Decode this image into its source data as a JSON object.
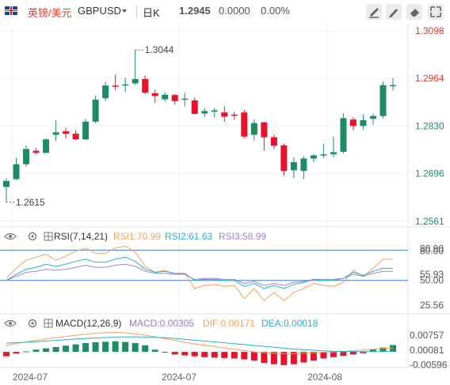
{
  "header": {
    "pair_cn": "英镑/美元",
    "symbol": "GBPUSD",
    "period": "日K",
    "price": "1.2945",
    "change": "0.0000",
    "change_pct": "0.00%"
  },
  "colors": {
    "up": "#1e8c63",
    "down": "#e8132b",
    "rsi1": "#f5a05a",
    "rsi2": "#2ab0c8",
    "rsi3": "#a082d2",
    "dif": "#f5a05a",
    "dea": "#2ab0c8",
    "macd_label": "#9b79cf",
    "ref_line": "#3b7dd8"
  },
  "chart_data": [
    {
      "type": "candlestick",
      "y_ticks": [
        "1.3098",
        "1.2964",
        "1.2830",
        "1.2696",
        "1.2561"
      ],
      "x_ticks": [
        "2024-07",
        "2024-07",
        "2024-08"
      ],
      "annotations": {
        "high": "1.3044",
        "low": "1.2615"
      },
      "ylim": [
        1.2561,
        1.3098
      ],
      "ohlc": [
        [
          1.2658,
          1.2682,
          1.2615,
          1.2675
        ],
        [
          1.268,
          1.274,
          1.2677,
          1.2722
        ],
        [
          1.2722,
          1.2775,
          1.2715,
          1.2765
        ],
        [
          1.276,
          1.2768,
          1.275,
          1.2754
        ],
        [
          1.2754,
          1.2795,
          1.2752,
          1.2792
        ],
        [
          1.2805,
          1.2845,
          1.2788,
          1.2812
        ],
        [
          1.2815,
          1.2825,
          1.2795,
          1.2808
        ],
        [
          1.2808,
          1.2818,
          1.279,
          1.2792
        ],
        [
          1.2792,
          1.285,
          1.279,
          1.2842
        ],
        [
          1.2842,
          1.2915,
          1.2838,
          1.2904
        ],
        [
          1.2908,
          1.2955,
          1.29,
          1.2944
        ],
        [
          1.2944,
          1.2975,
          1.293,
          1.2942
        ],
        [
          1.2945,
          1.2965,
          1.2925,
          1.2947
        ],
        [
          1.295,
          1.3044,
          1.2945,
          1.2962
        ],
        [
          1.2962,
          1.2972,
          1.292,
          1.2924
        ],
        [
          1.2922,
          1.2932,
          1.2895,
          1.2914
        ],
        [
          1.2905,
          1.2925,
          1.2898,
          1.2918
        ],
        [
          1.2917,
          1.292,
          1.289,
          1.29
        ],
        [
          1.2905,
          1.2923,
          1.2885,
          1.2907
        ],
        [
          1.2902,
          1.291,
          1.2862,
          1.2864
        ],
        [
          1.2865,
          1.288,
          1.2855,
          1.2872
        ],
        [
          1.287,
          1.288,
          1.2854,
          1.2874
        ],
        [
          1.2868,
          1.2885,
          1.2842,
          1.2856
        ],
        [
          1.2862,
          1.287,
          1.2848,
          1.286
        ],
        [
          1.2868,
          1.2875,
          1.2795,
          1.28
        ],
        [
          1.2805,
          1.2848,
          1.2788,
          1.2838
        ],
        [
          1.284,
          1.2842,
          1.276,
          1.2798
        ],
        [
          1.2798,
          1.2805,
          1.2765,
          1.2774
        ],
        [
          1.2775,
          1.278,
          1.269,
          1.2703
        ],
        [
          1.2705,
          1.2742,
          1.2682,
          1.2728
        ],
        [
          1.2703,
          1.2745,
          1.268,
          1.2738
        ],
        [
          1.2738,
          1.275,
          1.2728,
          1.2747
        ],
        [
          1.2748,
          1.278,
          1.274,
          1.275
        ],
        [
          1.275,
          1.28,
          1.2742,
          1.2756
        ],
        [
          1.2757,
          1.2866,
          1.2752,
          1.2852
        ],
        [
          1.2848,
          1.2855,
          1.2818,
          1.283
        ],
        [
          1.283,
          1.2862,
          1.282,
          1.2846
        ],
        [
          1.285,
          1.2865,
          1.2833,
          1.2858
        ],
        [
          1.2858,
          1.2955,
          1.2852,
          1.2945
        ],
        [
          1.2945,
          1.2965,
          1.293,
          1.2945
        ]
      ]
    },
    {
      "type": "line",
      "title": "RSI(7,14,21)",
      "legend": [
        {
          "label": "RSI1:70.99",
          "color_key": "rsi1"
        },
        {
          "label": "RSI2:61.63",
          "color_key": "rsi2"
        },
        {
          "label": "RSI3:58.99",
          "color_key": "rsi3"
        }
      ],
      "y_ticks": [
        "80.90",
        "80.00",
        "55.93",
        "50.00",
        "25.56"
      ],
      "ylim": [
        20,
        85
      ],
      "ref_lines": [
        80,
        50
      ],
      "series": [
        {
          "color_key": "rsi1",
          "values": [
            52,
            62,
            70,
            73,
            76,
            70,
            74,
            79,
            82,
            77,
            77,
            82,
            84,
            78,
            64,
            58,
            60,
            56,
            57,
            42,
            45,
            46,
            44,
            45,
            32,
            42,
            30,
            38,
            30,
            38,
            42,
            47,
            45,
            44,
            48,
            60,
            54,
            62,
            71,
            71
          ]
        },
        {
          "color_key": "rsi2",
          "values": [
            50,
            56,
            61,
            63,
            66,
            64,
            66,
            69,
            71,
            68,
            68,
            71,
            73,
            69,
            61,
            58,
            59,
            57,
            57,
            50,
            51,
            51,
            50,
            50,
            44,
            47,
            42,
            45,
            42,
            46,
            48,
            51,
            50,
            50,
            52,
            58,
            55,
            59,
            62,
            62
          ]
        },
        {
          "color_key": "rsi3",
          "values": [
            50,
            54,
            58,
            59,
            61,
            60,
            61,
            63,
            65,
            63,
            63,
            65,
            66,
            64,
            59,
            57,
            57,
            56,
            56,
            51,
            52,
            52,
            51,
            51,
            47,
            49,
            45,
            47,
            45,
            48,
            49,
            51,
            51,
            51,
            52,
            56,
            54,
            57,
            59,
            59
          ]
        }
      ]
    },
    {
      "type": "bar",
      "title": "MACD(12,26,9)",
      "legend": [
        {
          "label": "MACD:0.00305",
          "color_key": "macd_label"
        },
        {
          "label": "DIF:0.00171",
          "color_key": "dif"
        },
        {
          "label": "DEA:0.00018",
          "color_key": "dea"
        }
      ],
      "y_ticks": [
        "0.00757",
        "0.00081",
        "-0.00596"
      ],
      "ylim": [
        -0.0075,
        0.009
      ],
      "hist": [
        -0.002,
        -0.0008,
        0.0002,
        0.001,
        0.0016,
        0.0022,
        0.0028,
        0.0034,
        0.004,
        0.0044,
        0.0046,
        0.0048,
        0.0045,
        0.004,
        0.003,
        0.001,
        -0.0002,
        -0.0012,
        -0.0016,
        -0.002,
        -0.0024,
        -0.0026,
        -0.0028,
        -0.003,
        -0.0034,
        -0.004,
        -0.005,
        -0.0056,
        -0.006,
        -0.0056,
        -0.0048,
        -0.004,
        -0.003,
        -0.0024,
        -0.0018,
        -0.0012,
        -0.0006,
        0.001,
        0.002,
        0.0031
      ],
      "dif": [
        0.003,
        0.0038,
        0.0045,
        0.0052,
        0.0058,
        0.0064,
        0.007,
        0.0075,
        0.008,
        0.0084,
        0.0087,
        0.0088,
        0.0086,
        0.0082,
        0.0076,
        0.0068,
        0.006,
        0.0052,
        0.0044,
        0.0036,
        0.003,
        0.0024,
        0.0018,
        0.0012,
        0.0006,
        0.0,
        -0.0004,
        -0.0006,
        -0.0008,
        -0.0008,
        -0.0006,
        -0.0004,
        -0.0002,
        0.0,
        0.0002,
        0.0005,
        0.0008,
        0.0012,
        0.0016,
        0.0017
      ],
      "dea": [
        0.004,
        0.0042,
        0.0044,
        0.0046,
        0.0049,
        0.0052,
        0.0055,
        0.0058,
        0.0061,
        0.0063,
        0.0065,
        0.0067,
        0.0068,
        0.0068,
        0.0067,
        0.0066,
        0.0064,
        0.0061,
        0.0057,
        0.0053,
        0.0049,
        0.0045,
        0.0041,
        0.0037,
        0.0033,
        0.0029,
        0.0025,
        0.0021,
        0.0017,
        0.0013,
        0.001,
        0.0007,
        0.0005,
        0.0003,
        0.0002,
        0.0001,
        0.0001,
        0.0001,
        0.0001,
        0.0002
      ]
    }
  ]
}
